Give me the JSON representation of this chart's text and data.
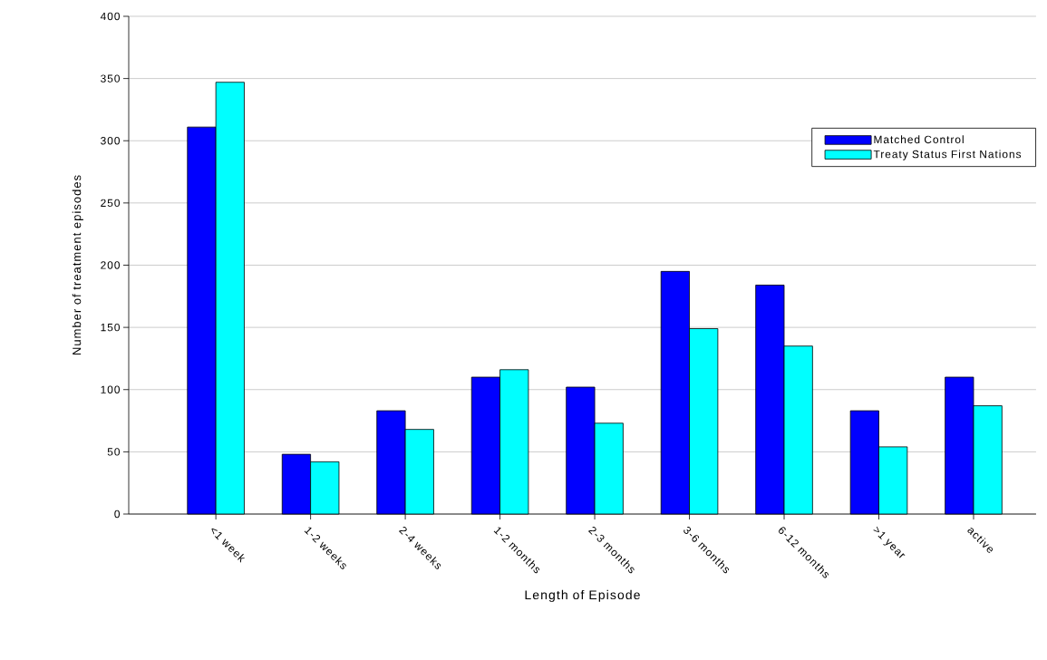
{
  "chart_data": {
    "type": "bar",
    "xlabel": "Length of Episode",
    "ylabel": "Number of treatment episodes",
    "categories": [
      "<1 week",
      "1-2 weeks",
      "2-4 weeks",
      "1-2 months",
      "2-3 months",
      "3-6 months",
      "6-12 months",
      ">1 year",
      "active"
    ],
    "series": [
      {
        "name": "Matched Control",
        "color": "#0000ff",
        "values": [
          311,
          48,
          83,
          110,
          102,
          195,
          184,
          83,
          110
        ]
      },
      {
        "name": "Treaty Status First Nations",
        "color": "#00ffff",
        "values": [
          347,
          42,
          68,
          116,
          73,
          149,
          135,
          54,
          87
        ]
      }
    ],
    "ylim": [
      0,
      400
    ],
    "yticks": [
      0,
      50,
      100,
      150,
      200,
      250,
      300,
      350,
      400
    ],
    "grid": "y",
    "legend": "top right"
  }
}
